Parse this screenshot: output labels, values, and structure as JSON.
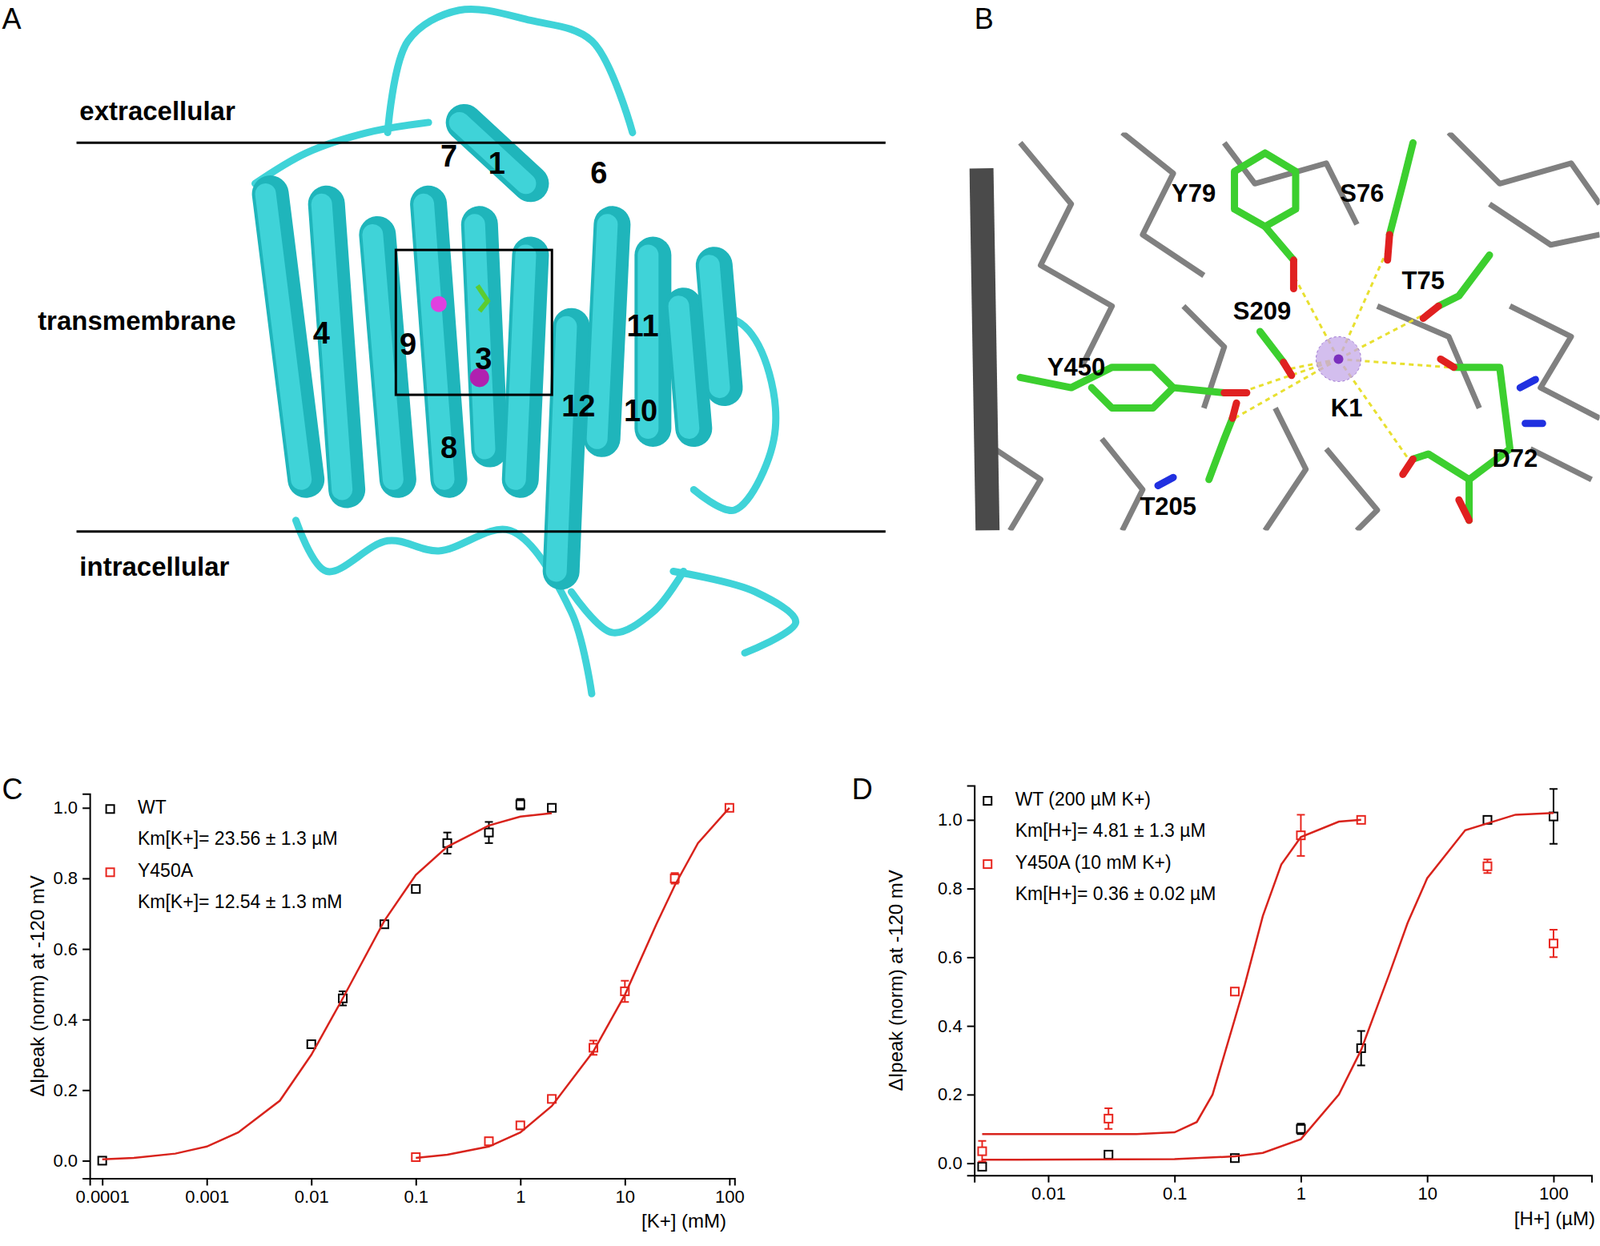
{
  "panel_labels": [
    "A",
    "B",
    "C",
    "D"
  ],
  "structure_view": {
    "membrane_labels": [
      "extracellular",
      "transmembrane",
      "intracellular"
    ],
    "helix_labels": [
      "7",
      "1",
      "6",
      "4",
      "9",
      "3",
      "11",
      "12",
      "10",
      "8"
    ]
  },
  "binding_site": {
    "residue_labels": [
      "Y79",
      "S76",
      "T75",
      "S209",
      "Y450",
      "K1",
      "D72",
      "T205"
    ]
  },
  "chart_data": [
    {
      "type": "scatter",
      "log": "x",
      "legend": "upper left",
      "x_label": "[K+] (mM)",
      "y_label": "ΔIpeak (norm) at -120 mV",
      "xlim": [
        7.6e-05,
        112
      ],
      "ylim": [
        -0.05,
        1.04
      ],
      "xticks": [
        0.0001,
        0.001,
        0.01,
        0.1,
        1,
        10,
        100
      ],
      "yticks": [
        {
          "value": 0,
          "label": "0.0"
        },
        {
          "value": 0.2,
          "label": "0.2"
        },
        {
          "value": 0.4,
          "label": "0.4"
        },
        {
          "value": 0.6,
          "label": "0.6"
        },
        {
          "value": 0.8,
          "label": "0.8"
        },
        {
          "value": 1,
          "label": "1.0"
        }
      ],
      "series": [
        {
          "name": "WT",
          "annotation": "Km[K+]= 23.56 ± 1.3 µM",
          "color": "#000000",
          "marker": "square-open",
          "x": [
            0.0001,
            0.01,
            0.02,
            0.05,
            0.1,
            0.2,
            0.5,
            1,
            2
          ],
          "values": [
            0,
            0.33,
            0.46,
            0.67,
            0.77,
            0.9,
            0.93,
            1.01,
            1.0
          ],
          "errors": [
            0.004,
            0.01,
            0.02,
            0.01,
            0.005,
            0.03,
            0.03,
            0.015,
            0.005
          ]
        },
        {
          "name": "Y450A",
          "annotation": "Km[K+]= 12.54 ± 1.3 mM",
          "color": "#e8261f",
          "marker": "square-open",
          "x": [
            0.1,
            0.5,
            1,
            2,
            5,
            10,
            30,
            100
          ],
          "values": [
            0.01,
            0.055,
            0.1,
            0.175,
            0.32,
            0.48,
            0.8,
            1.0
          ],
          "errors": [
            0.008,
            0.01,
            0.01,
            0.006,
            0.02,
            0.03,
            0.015,
            0.005
          ]
        },
        {
          "type": "line",
          "color": "#d8231c",
          "x": [
            0.0001,
            0.0002,
            0.0005,
            0.001,
            0.002,
            0.005,
            0.01,
            0.02,
            0.05,
            0.1,
            0.2,
            0.5,
            1,
            2
          ],
          "values": [
            0.004,
            0.008,
            0.02,
            0.04,
            0.08,
            0.17,
            0.3,
            0.46,
            0.68,
            0.81,
            0.89,
            0.95,
            0.975,
            0.985
          ]
        },
        {
          "type": "line",
          "color": "#d8231c",
          "x": [
            0.1,
            0.2,
            0.5,
            1,
            2,
            5,
            10,
            20,
            30,
            50,
            100
          ],
          "values": [
            0.008,
            0.017,
            0.04,
            0.08,
            0.155,
            0.31,
            0.47,
            0.67,
            0.78,
            0.9,
            1.0
          ]
        }
      ]
    },
    {
      "type": "scatter",
      "log": "x",
      "legend": "upper left",
      "x_label": "[H+] (µM)",
      "y_label": "ΔIpeak (norm) at -120 mV",
      "xlim": [
        0.0026,
        200
      ],
      "ylim": [
        -0.035,
        1.1
      ],
      "xticks": [
        0.01,
        0.1,
        1,
        10,
        100
      ],
      "yticks": [
        {
          "value": 0,
          "label": "0.0"
        },
        {
          "value": 0.2,
          "label": "0.2"
        },
        {
          "value": 0.4,
          "label": "0.4"
        },
        {
          "value": 0.6,
          "label": "0.6"
        },
        {
          "value": 0.8,
          "label": "0.8"
        },
        {
          "value": 1,
          "label": "1.0"
        }
      ],
      "series": [
        {
          "name": "WT (200 µM K+)",
          "annotation": "Km[H+]= 4.81 ± 1.3 µM",
          "color": "#000000",
          "marker": "square-open",
          "x": [
            0.003,
            0.03,
            0.3,
            1,
            3,
            30,
            100
          ],
          "values": [
            -0.01,
            0.025,
            0.015,
            0.1,
            0.335,
            1.0,
            1.01
          ],
          "errors": [
            0.01,
            0.005,
            0.01,
            0.015,
            0.05,
            0.005,
            0.08
          ]
        },
        {
          "name": "Y450A (10 mM K+)",
          "annotation": "Km[H+]= 0.36 ± 0.02 µM",
          "color": "#e8261f",
          "marker": "square-open",
          "x": [
            0.003,
            0.03,
            0.3,
            1,
            3,
            30,
            100
          ],
          "values": [
            0.035,
            0.13,
            0.5,
            0.955,
            1.0,
            0.865,
            0.64
          ],
          "errors": [
            0.03,
            0.03,
            0.01,
            0.06,
            0.005,
            0.02,
            0.04
          ]
        },
        {
          "type": "line",
          "color": "#d8231c",
          "x": [
            0.003,
            0.1,
            0.3,
            0.5,
            1,
            2,
            3,
            5,
            7,
            10,
            20,
            50,
            100
          ],
          "values": [
            0.01,
            0.012,
            0.02,
            0.03,
            0.07,
            0.2,
            0.33,
            0.55,
            0.7,
            0.83,
            0.97,
            1.015,
            1.02
          ]
        },
        {
          "type": "line",
          "color": "#d8231c",
          "x": [
            0.003,
            0.05,
            0.1,
            0.15,
            0.2,
            0.3,
            0.36,
            0.5,
            0.7,
            1,
            2,
            3
          ],
          "values": [
            0.085,
            0.085,
            0.09,
            0.12,
            0.2,
            0.42,
            0.52,
            0.72,
            0.87,
            0.95,
            0.995,
            1.0
          ]
        }
      ]
    }
  ]
}
